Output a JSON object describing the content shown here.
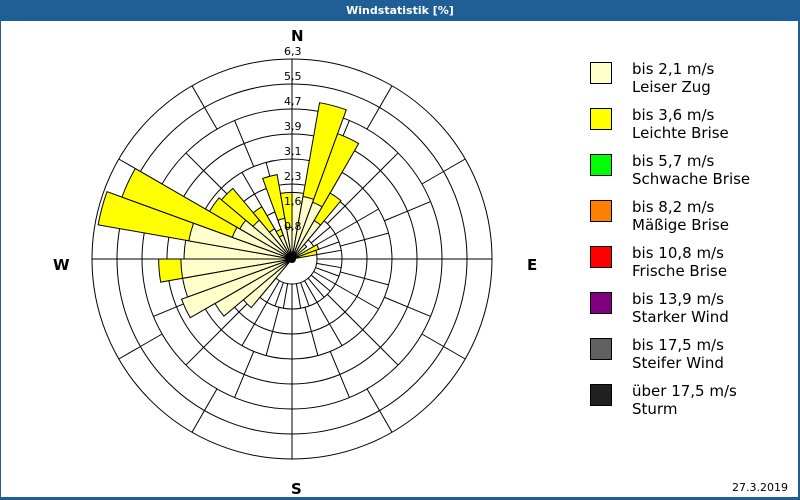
{
  "window": {
    "title": "Windstatistik [%]"
  },
  "footer": {
    "date": "27.3.2019"
  },
  "compass": {
    "N": "N",
    "E": "E",
    "S": "S",
    "W": "W"
  },
  "legend": [
    {
      "range": "bis 2,1 m/s",
      "name": "Leiser Zug",
      "color": "#ffffcc"
    },
    {
      "range": "bis 3,6 m/s",
      "name": "Leichte Brise",
      "color": "#ffff00"
    },
    {
      "range": "bis 5,7 m/s",
      "name": "Schwache Brise",
      "color": "#00ff00"
    },
    {
      "range": "bis 8,2 m/s",
      "name": "Mäßige Brise",
      "color": "#ff8000"
    },
    {
      "range": "bis 10,8 m/s",
      "name": "Frische Brise",
      "color": "#ff0000"
    },
    {
      "range": "bis 13,9 m/s",
      "name": "Starker Wind",
      "color": "#800080"
    },
    {
      "range": "bis 17,5 m/s",
      "name": "Steifer Wind",
      "color": "#606060"
    },
    {
      "range": "über 17,5 m/s",
      "name": "Sturm",
      "color": "#202020"
    }
  ],
  "chart_data": {
    "type": "wind-rose",
    "title": "Windstatistik [%]",
    "rings": [
      "0,8",
      "1,6",
      "2,3",
      "3,1",
      "3,9",
      "4,7",
      "5,5",
      "6,3"
    ],
    "max_percent": 6.3,
    "sector_width_deg": 10,
    "series_names": [
      "bis 2,1 m/s",
      "bis 3,6 m/s"
    ],
    "sectors": [
      {
        "dir": 0,
        "cum": [
          2.1,
          2.1
        ]
      },
      {
        "dir": 10,
        "cum": [
          2.0,
          5.0
        ]
      },
      {
        "dir": 20,
        "cum": [
          1.9,
          4.2
        ]
      },
      {
        "dir": 30,
        "cum": [
          1.4,
          2.4
        ]
      },
      {
        "dir": 40,
        "cum": [
          0.6,
          0.6
        ]
      },
      {
        "dir": 60,
        "cum": [
          0.0,
          0.9
        ]
      },
      {
        "dir": 70,
        "cum": [
          0.0,
          0.8
        ]
      },
      {
        "dir": 220,
        "cum": [
          2.0,
          2.0
        ]
      },
      {
        "dir": 230,
        "cum": [
          2.8,
          2.8
        ]
      },
      {
        "dir": 240,
        "cum": [
          3.7,
          3.7
        ]
      },
      {
        "dir": 250,
        "cum": [
          3.5,
          3.5
        ]
      },
      {
        "dir": 260,
        "cum": [
          3.5,
          4.2
        ]
      },
      {
        "dir": 270,
        "cum": [
          3.4,
          3.4
        ]
      },
      {
        "dir": 280,
        "cum": [
          3.3,
          6.2
        ]
      },
      {
        "dir": 290,
        "cum": [
          2.0,
          5.7
        ]
      },
      {
        "dir": 300,
        "cum": [
          1.9,
          3.0
        ]
      },
      {
        "dir": 310,
        "cum": [
          1.6,
          2.9
        ]
      },
      {
        "dir": 320,
        "cum": [
          1.1,
          1.9
        ]
      },
      {
        "dir": 330,
        "cum": [
          0.8,
          1.0
        ]
      },
      {
        "dir": 340,
        "cum": [
          1.3,
          2.7
        ]
      },
      {
        "dir": 350,
        "cum": [
          1.0,
          2.1
        ]
      }
    ]
  }
}
